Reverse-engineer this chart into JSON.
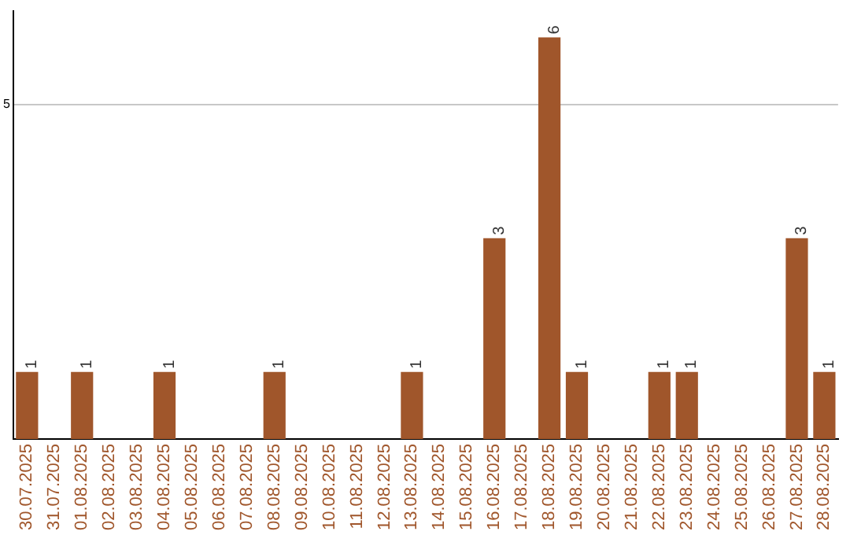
{
  "chart_data": {
    "type": "bar",
    "categories": [
      "30.07.2025",
      "31.07.2025",
      "01.08.2025",
      "02.08.2025",
      "03.08.2025",
      "04.08.2025",
      "05.08.2025",
      "06.08.2025",
      "07.08.2025",
      "08.08.2025",
      "09.08.2025",
      "10.08.2025",
      "11.08.2025",
      "12.08.2025",
      "13.08.2025",
      "14.08.2025",
      "15.08.2025",
      "16.08.2025",
      "17.08.2025",
      "18.08.2025",
      "19.08.2025",
      "20.08.2025",
      "21.08.2025",
      "22.08.2025",
      "23.08.2025",
      "24.08.2025",
      "25.08.2025",
      "26.08.2025",
      "27.08.2025",
      "28.08.2025"
    ],
    "values": [
      1,
      null,
      1,
      null,
      null,
      1,
      null,
      null,
      null,
      1,
      null,
      null,
      null,
      null,
      1,
      null,
      null,
      3,
      null,
      6,
      1,
      null,
      null,
      1,
      1,
      null,
      null,
      null,
      3,
      1
    ],
    "color": "#a0562b",
    "ylim": [
      0,
      6.4
    ],
    "yticks": [
      5
    ],
    "grid": "y",
    "legend": false,
    "data_labels": true
  }
}
